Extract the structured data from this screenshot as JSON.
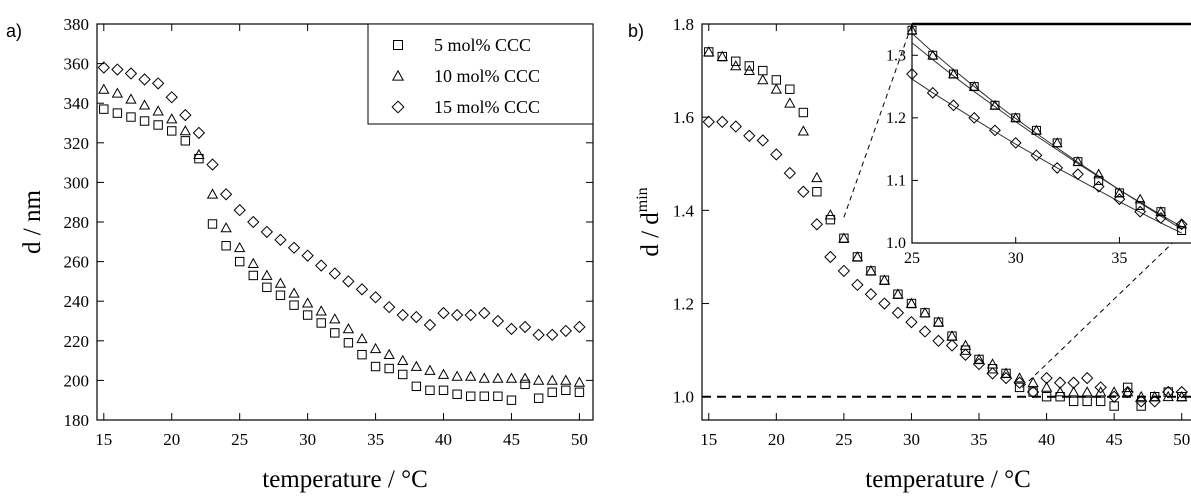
{
  "chart_data": [
    {
      "type": "scatter",
      "panel_label": "a)",
      "xlabel": "temperature / °C",
      "ylabel": "d / nm",
      "xlim": [
        14.5,
        51
      ],
      "ylim": [
        180,
        380
      ],
      "xticks": [
        15,
        20,
        25,
        30,
        35,
        40,
        45,
        50
      ],
      "yticks": [
        180,
        200,
        220,
        240,
        260,
        280,
        300,
        320,
        340,
        360,
        380
      ],
      "legend_position": "top-right",
      "series": [
        {
          "name": "5 mol% CCC",
          "marker": "square",
          "x": [
            15,
            16,
            17,
            18,
            19,
            20,
            21,
            22,
            23,
            24,
            25,
            26,
            27,
            28,
            29,
            30,
            31,
            32,
            33,
            34,
            35,
            36,
            37,
            38,
            39,
            40,
            41,
            42,
            43,
            44,
            45,
            46,
            47,
            48,
            49,
            50
          ],
          "y": [
            337,
            335,
            333,
            331,
            329,
            326,
            321,
            312,
            279,
            268,
            260,
            253,
            247,
            243,
            238,
            233,
            229,
            224,
            219,
            213,
            207,
            206,
            203,
            197,
            195,
            195,
            193,
            192,
            192,
            192,
            190,
            198,
            191,
            194,
            195,
            194
          ]
        },
        {
          "name": "10 mol% CCC",
          "marker": "triangle",
          "x": [
            15,
            16,
            17,
            18,
            19,
            20,
            21,
            22,
            23,
            24,
            25,
            26,
            27,
            28,
            29,
            30,
            31,
            32,
            33,
            34,
            35,
            36,
            37,
            38,
            39,
            40,
            41,
            42,
            43,
            44,
            45,
            46,
            47,
            48,
            49,
            50
          ],
          "y": [
            347,
            345,
            342,
            339,
            336,
            332,
            326,
            314,
            294,
            277,
            267,
            259,
            253,
            249,
            244,
            239,
            235,
            231,
            226,
            221,
            216,
            213,
            210,
            207,
            205,
            203,
            202,
            202,
            201,
            201,
            201,
            201,
            200,
            200,
            200,
            199
          ]
        },
        {
          "name": "15 mol% CCC",
          "marker": "diamond",
          "x": [
            15,
            16,
            17,
            18,
            19,
            20,
            21,
            22,
            23,
            24,
            25,
            26,
            27,
            28,
            29,
            30,
            31,
            32,
            33,
            34,
            35,
            36,
            37,
            38,
            39,
            40,
            41,
            42,
            43,
            44,
            45,
            46,
            47,
            48,
            49,
            50
          ],
          "y": [
            358,
            357,
            355,
            352,
            350,
            343,
            334,
            325,
            309,
            294,
            286,
            280,
            275,
            271,
            267,
            263,
            258,
            254,
            250,
            246,
            242,
            237,
            233,
            232,
            228,
            234,
            233,
            233,
            234,
            230,
            226,
            227,
            223,
            223,
            225,
            227
          ]
        }
      ]
    },
    {
      "type": "scatter",
      "panel_label": "b)",
      "xlabel": "temperature / °C",
      "ylabel_main": "d / d",
      "ylabel_sup": "min",
      "xlim": [
        14.5,
        51.5
      ],
      "ylim": [
        0.95,
        1.8
      ],
      "xticks": [
        15,
        20,
        25,
        30,
        35,
        40,
        45,
        50
      ],
      "yticks": [
        1.0,
        1.2,
        1.4,
        1.6,
        1.8
      ],
      "reference_line_y": 1.0,
      "series": [
        {
          "marker": "square",
          "x": [
            15,
            16,
            17,
            18,
            19,
            20,
            21,
            22,
            23,
            24,
            25,
            26,
            27,
            28,
            29,
            30,
            31,
            32,
            33,
            34,
            35,
            36,
            37,
            38,
            39,
            40,
            41,
            42,
            43,
            44,
            45,
            46,
            47,
            48,
            49,
            50
          ],
          "y": [
            1.74,
            1.73,
            1.72,
            1.71,
            1.7,
            1.68,
            1.66,
            1.61,
            1.44,
            1.38,
            1.34,
            1.3,
            1.27,
            1.25,
            1.22,
            1.2,
            1.18,
            1.16,
            1.13,
            1.1,
            1.08,
            1.06,
            1.05,
            1.02,
            1.01,
            1.0,
            1.0,
            0.99,
            0.99,
            0.99,
            0.98,
            1.02,
            0.98,
            1.0,
            1.01,
            1.0
          ]
        },
        {
          "marker": "triangle",
          "x": [
            15,
            16,
            17,
            18,
            19,
            20,
            21,
            22,
            23,
            24,
            25,
            26,
            27,
            28,
            29,
            30,
            31,
            32,
            33,
            34,
            35,
            36,
            37,
            38,
            39,
            40,
            41,
            42,
            43,
            44,
            45,
            46,
            47,
            48,
            49,
            50
          ],
          "y": [
            1.74,
            1.73,
            1.71,
            1.7,
            1.68,
            1.66,
            1.63,
            1.57,
            1.47,
            1.39,
            1.34,
            1.3,
            1.27,
            1.25,
            1.22,
            1.2,
            1.18,
            1.16,
            1.13,
            1.11,
            1.08,
            1.07,
            1.05,
            1.04,
            1.03,
            1.02,
            1.01,
            1.01,
            1.01,
            1.01,
            1.01,
            1.01,
            1.0,
            1.0,
            1.0,
            1.0
          ]
        },
        {
          "marker": "diamond",
          "x": [
            15,
            16,
            17,
            18,
            19,
            20,
            21,
            22,
            23,
            24,
            25,
            26,
            27,
            28,
            29,
            30,
            31,
            32,
            33,
            34,
            35,
            36,
            37,
            38,
            39,
            40,
            41,
            42,
            43,
            44,
            45,
            46,
            47,
            48,
            49,
            50
          ],
          "y": [
            1.59,
            1.59,
            1.58,
            1.56,
            1.55,
            1.52,
            1.48,
            1.44,
            1.37,
            1.3,
            1.27,
            1.24,
            1.22,
            1.2,
            1.18,
            1.16,
            1.14,
            1.12,
            1.11,
            1.09,
            1.07,
            1.05,
            1.04,
            1.03,
            1.01,
            1.04,
            1.03,
            1.03,
            1.04,
            1.02,
            1.0,
            1.01,
            0.99,
            0.99,
            1.01,
            1.01
          ]
        }
      ],
      "inset": {
        "xlim": [
          25,
          38.5
        ],
        "ylim": [
          1.0,
          1.35
        ],
        "xticks": [
          25,
          30,
          35
        ],
        "yticks": [
          1.0,
          1.1,
          1.2,
          1.3
        ],
        "series": [
          {
            "marker": "square",
            "x": [
              25,
              26,
              27,
              28,
              29,
              30,
              31,
              32,
              33,
              34,
              35,
              36,
              37,
              38
            ],
            "y": [
              1.34,
              1.3,
              1.27,
              1.25,
              1.22,
              1.2,
              1.18,
              1.16,
              1.13,
              1.1,
              1.08,
              1.06,
              1.05,
              1.02
            ],
            "fit": [
              1.335,
              1.305,
              1.277,
              1.25,
              1.224,
              1.199,
              1.175,
              1.152,
              1.129,
              1.107,
              1.085,
              1.064,
              1.043,
              1.022
            ]
          },
          {
            "marker": "triangle",
            "x": [
              25,
              26,
              27,
              28,
              29,
              30,
              31,
              32,
              33,
              34,
              35,
              36,
              37,
              38
            ],
            "y": [
              1.34,
              1.3,
              1.27,
              1.25,
              1.22,
              1.2,
              1.18,
              1.16,
              1.13,
              1.11,
              1.08,
              1.07,
              1.05,
              1.03
            ],
            "fit": [
              1.32,
              1.293,
              1.267,
              1.242,
              1.218,
              1.194,
              1.171,
              1.149,
              1.127,
              1.106,
              1.085,
              1.065,
              1.045,
              1.026
            ]
          },
          {
            "marker": "diamond",
            "x": [
              25,
              26,
              27,
              28,
              29,
              30,
              31,
              32,
              33,
              34,
              35,
              36,
              37,
              38
            ],
            "y": [
              1.27,
              1.24,
              1.22,
              1.2,
              1.18,
              1.16,
              1.14,
              1.12,
              1.11,
              1.09,
              1.07,
              1.05,
              1.04,
              1.03
            ],
            "fit": [
              1.262,
              1.24,
              1.219,
              1.198,
              1.178,
              1.158,
              1.139,
              1.12,
              1.102,
              1.084,
              1.066,
              1.049,
              1.032,
              1.016
            ]
          }
        ]
      }
    }
  ]
}
